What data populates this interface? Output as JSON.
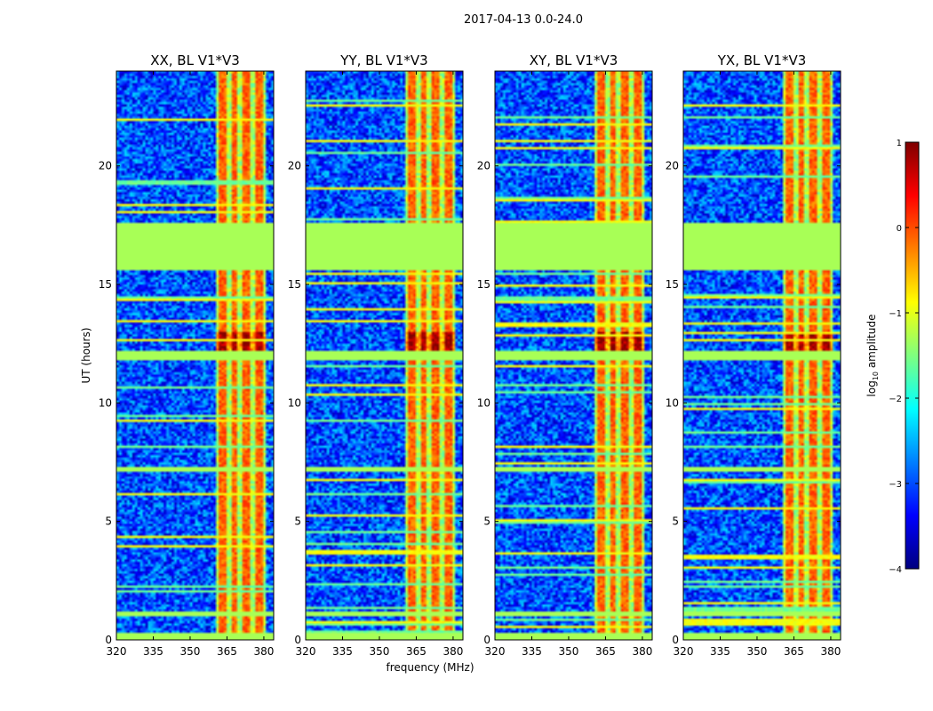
{
  "figure": {
    "suptitle": "2017-04-13 0.0-24.0",
    "xlabel": "frequency (MHz)",
    "ylabel": "UT (hours)"
  },
  "colorbar": {
    "label_main": "log",
    "label_sub": "10",
    "label_tail": " amplitude",
    "ticks": [
      1,
      0,
      -1,
      -2,
      -3,
      -4
    ],
    "tick_labels": [
      "1",
      "0",
      "−1",
      "−2",
      "−3",
      "−4"
    ],
    "range": [
      -4,
      1
    ],
    "colormap": "jet",
    "colors": [
      "#00007f",
      "#0000ff",
      "#007fff",
      "#00ffff",
      "#7fff7f",
      "#ffff00",
      "#ff7f00",
      "#ff0000",
      "#7f0000"
    ]
  },
  "chart_data": [
    {
      "type": "heatmap",
      "title": "XX, BL V1*V3",
      "x_ticks": [
        320,
        335,
        350,
        365,
        380
      ],
      "x_tick_labels": [
        "320",
        "335",
        "350",
        "365",
        "380"
      ],
      "xlim": [
        320,
        384
      ],
      "y_ticks": [
        0,
        5,
        10,
        15,
        20
      ],
      "y_tick_labels": [
        "0",
        "5",
        "10",
        "15",
        "20"
      ],
      "ylim": [
        0,
        24
      ]
    },
    {
      "type": "heatmap",
      "title": "YY, BL V1*V3",
      "x_ticks": [
        320,
        335,
        350,
        365,
        380
      ],
      "x_tick_labels": [
        "320",
        "335",
        "350",
        "365",
        "380"
      ],
      "xlim": [
        320,
        384
      ],
      "y_ticks": [
        0,
        5,
        10,
        15,
        20
      ],
      "y_tick_labels": [
        "0",
        "5",
        "10",
        "15",
        "20"
      ],
      "ylim": [
        0,
        24
      ]
    },
    {
      "type": "heatmap",
      "title": "XY, BL V1*V3",
      "x_ticks": [
        320,
        335,
        350,
        365,
        380
      ],
      "x_tick_labels": [
        "320",
        "335",
        "350",
        "365",
        "380"
      ],
      "xlim": [
        320,
        384
      ],
      "y_ticks": [
        0,
        5,
        10,
        15,
        20
      ],
      "y_tick_labels": [
        "0",
        "5",
        "10",
        "15",
        "20"
      ],
      "ylim": [
        0,
        24
      ]
    },
    {
      "type": "heatmap",
      "title": "YX, BL V1*V3",
      "x_ticks": [
        320,
        335,
        350,
        365,
        380
      ],
      "x_tick_labels": [
        "320",
        "335",
        "350",
        "365",
        "380"
      ],
      "xlim": [
        320,
        384
      ],
      "y_ticks": [
        0,
        5,
        10,
        15,
        20
      ],
      "y_tick_labels": [
        "0",
        "5",
        "10",
        "15",
        "20"
      ],
      "ylim": [
        0,
        24
      ]
    }
  ],
  "features": {
    "signal_band_mhz": [
      361,
      381
    ],
    "strong_channels_mhz": [
      363,
      368,
      373,
      378
    ],
    "flagged_rows_ut": [
      [
        15.6,
        17.6
      ],
      [
        11.8,
        12.2
      ],
      [
        7.1,
        7.3
      ],
      [
        1.0,
        1.2
      ],
      [
        0.0,
        0.3
      ]
    ],
    "flagged_value": -1.3
  }
}
